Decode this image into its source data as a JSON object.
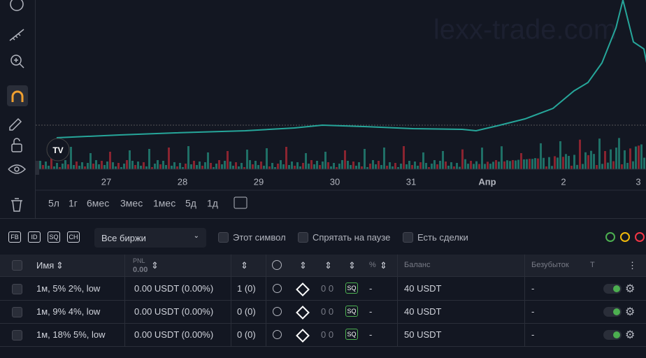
{
  "chart": {
    "watermark": "lexx-trade.com",
    "x_labels": [
      "27",
      "28",
      "29",
      "30",
      "31",
      "Апр",
      "2",
      "3"
    ]
  },
  "timeframes": [
    "5л",
    "1г",
    "6мес",
    "3мес",
    "1мес",
    "5д",
    "1д"
  ],
  "tags": [
    "FB",
    "ID",
    "SQ",
    "CH"
  ],
  "filters": {
    "exchange": "Все биржи",
    "checkboxes": [
      "Этот символ",
      "Спрятать на паузе",
      "Есть сделки"
    ]
  },
  "table": {
    "headers": {
      "name": "Имя",
      "pnl": "PNL",
      "pnl_total": "0.00",
      "percent": "%",
      "balance": "Баланс",
      "breakeven": "Безубыток",
      "t": "Т"
    },
    "rows": [
      {
        "name": "1м, 5% 2%, low",
        "pnl": "0.00 USDT (0.00%)",
        "count": "1 (0)",
        "pause": "0 0",
        "tag": "SQ",
        "percent": "-",
        "balance": "40 USDT",
        "breakeven": "-"
      },
      {
        "name": "1м, 9% 4%, low",
        "pnl": "0.00 USDT (0.00%)",
        "count": "0 (0)",
        "pause": "0 0",
        "tag": "SQ",
        "percent": "-",
        "balance": "40 USDT",
        "breakeven": "-"
      },
      {
        "name": "1м, 18% 5%, low",
        "pnl": "0.00 USDT (0.00%)",
        "count": "0 (0)",
        "pause": "0 0",
        "tag": "SQ",
        "percent": "-",
        "balance": "50 USDT",
        "breakeven": "-"
      }
    ]
  }
}
